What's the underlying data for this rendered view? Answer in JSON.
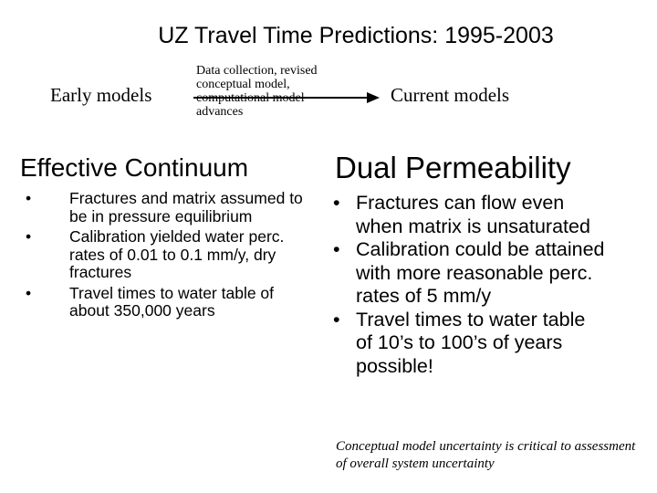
{
  "slide": {
    "title": "UZ Travel Time Predictions: 1995-2003",
    "timeline": {
      "start_label": "Early models",
      "transition_caption": "Data collection, revised conceptual model, computational model advances",
      "end_label": "Current models"
    },
    "left": {
      "heading": "Effective Continuum",
      "bullets": [
        "Fractures and matrix assumed to be in pressure equilibrium",
        "Calibration yielded water perc. rates of 0.01 to 0.1 mm/y, dry fractures",
        "Travel times to water table of about 350,000 years"
      ]
    },
    "right": {
      "heading": "Dual Permeability",
      "bullets": [
        "Fractures can flow even when matrix is unsaturated",
        "Calibration could be attained with more reasonable perc. rates of 5 mm/y",
        "Travel times to water table of 10’s to 100’s of years possible!"
      ]
    },
    "footnote": "Conceptual model uncertainty is critical to assessment of overall system uncertainty"
  },
  "icons": {
    "bullet_char": "•",
    "arrow": "arrow-right-icon"
  }
}
